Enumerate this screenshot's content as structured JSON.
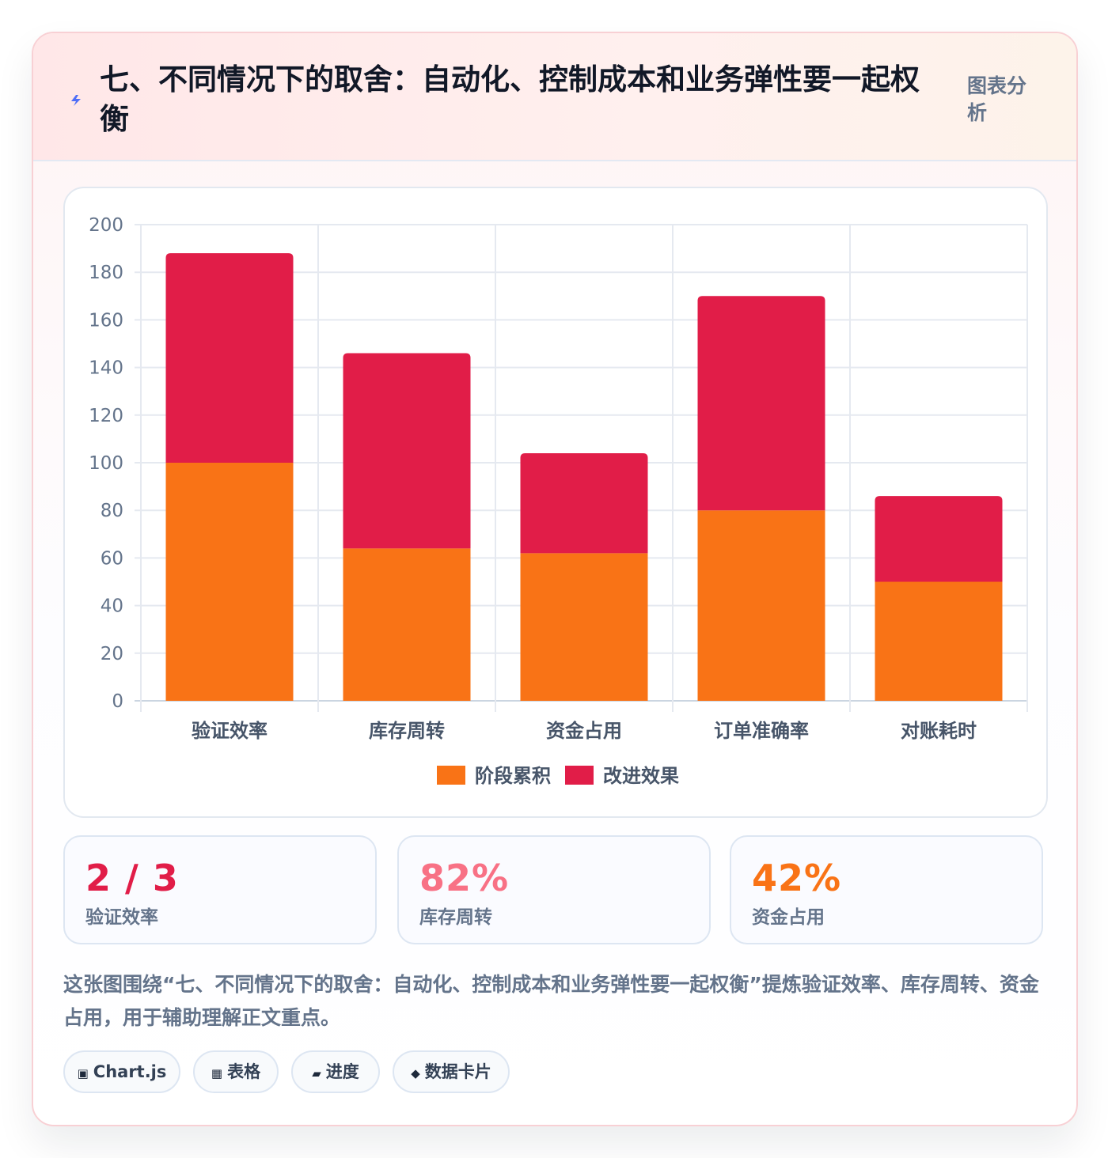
{
  "header": {
    "title": "七、不同情况下的取舍：自动化、控制成本和业务弹性要一起权衡",
    "tag": "图表分析",
    "icon": "lightning-icon"
  },
  "chart_data": {
    "type": "bar",
    "stacked": true,
    "categories": [
      "验证效率",
      "库存周转",
      "资金占用",
      "订单准确率",
      "对账耗时"
    ],
    "series": [
      {
        "name": "阶段累积",
        "color": "#f97316",
        "values": [
          100,
          64,
          62,
          80,
          50
        ]
      },
      {
        "name": "改进效果",
        "color": "#e11d48",
        "values": [
          88,
          82,
          42,
          90,
          36
        ]
      }
    ],
    "ylim": [
      0,
      200
    ],
    "yticks": [
      0,
      20,
      40,
      60,
      80,
      100,
      120,
      140,
      160,
      180,
      200
    ],
    "grid": true,
    "legend": "bottom"
  },
  "stats": [
    {
      "value": "2 / 3",
      "label": "验证效率",
      "color": "#e11d48"
    },
    {
      "value": "82%",
      "label": "库存周转",
      "color": "#f87185"
    },
    {
      "value": "42%",
      "label": "资金占用",
      "color": "#f97316"
    }
  ],
  "description": "这张图围绕“七、不同情况下的取舍：自动化、控制成本和业务弹性要一起权衡”提炼验证效率、库存周转、资金占用，用于辅助理解正文重点。",
  "chips": [
    {
      "icon": "▣",
      "label": "Chart.js"
    },
    {
      "icon": "▦",
      "label": "表格"
    },
    {
      "icon": "▰",
      "label": "进度"
    },
    {
      "icon": "◆",
      "label": "数据卡片"
    }
  ]
}
